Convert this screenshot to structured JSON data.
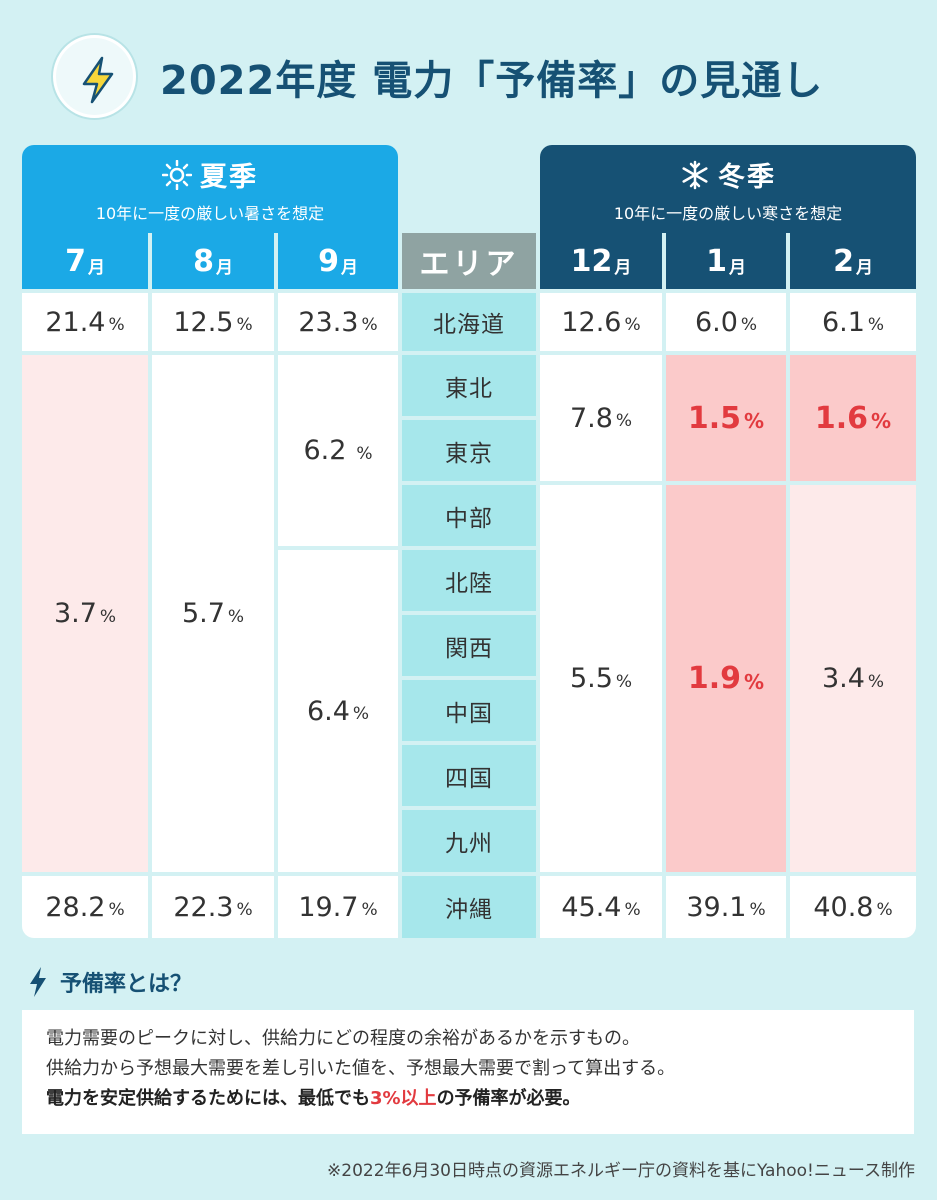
{
  "title": "2022年度 電力「予備率」の見通し",
  "summer": {
    "title": "夏季",
    "subtitle": "10年に一度の厳しい暑さを想定",
    "months": [
      {
        "num": "7",
        "unit": "月"
      },
      {
        "num": "8",
        "unit": "月"
      },
      {
        "num": "9",
        "unit": "月"
      }
    ]
  },
  "winter": {
    "title": "冬季",
    "subtitle": "10年に一度の厳しい寒さを想定",
    "months": [
      {
        "num": "12",
        "unit": "月"
      },
      {
        "num": "1",
        "unit": "月"
      },
      {
        "num": "2",
        "unit": "月"
      }
    ]
  },
  "area_header": "エリア",
  "areas": [
    "北海道",
    "東北",
    "東京",
    "中部",
    "北陸",
    "関西",
    "中国",
    "四国",
    "九州",
    "沖縄"
  ],
  "unit": "%",
  "values": {
    "jul": {
      "hokkaido": "21.4",
      "mainland": "3.7",
      "okinawa": "28.2"
    },
    "aug": {
      "hokkaido": "12.5",
      "mainland": "5.7",
      "okinawa": "22.3"
    },
    "sep": {
      "hokkaido": "23.3",
      "east": "6.2",
      "west": "6.4",
      "okinawa": "19.7"
    },
    "dec": {
      "hokkaido": "12.6",
      "east": "7.8",
      "west": "5.5",
      "okinawa": "45.4"
    },
    "jan": {
      "hokkaido": "6.0",
      "east": "1.5",
      "west": "1.9",
      "okinawa": "39.1"
    },
    "feb": {
      "hokkaido": "6.1",
      "east": "1.6",
      "west": "3.4",
      "okinawa": "40.8"
    }
  },
  "colors": {
    "summer": "#1ba9e6",
    "winter": "#165174",
    "area": "#a6e7eb",
    "warning": "#e23a3f",
    "pink": "#fdeaea",
    "red_bg": "#fbcaca"
  },
  "icons": {
    "logo": "lightning-bolt-icon",
    "summer": "sun-icon",
    "winter": "snowflake-icon",
    "definition": "lightning-bolt-icon"
  },
  "definition": {
    "title": "予備率とは？",
    "line1": "電力需要のピークに対し、供給力にどの程度の余裕があるかを示すもの。",
    "line2": "供給力から予想最大需要を差し引いた値を、予想最大需要で割って算出する。",
    "line3_a": "電力を安定供給するためには、最低でも",
    "line3_b": "3%以上",
    "line3_c": "の予備率が必要。"
  },
  "footnote": "※2022年6月30日時点の資源エネルギー庁の資料を基にYahoo!ニュース制作"
}
